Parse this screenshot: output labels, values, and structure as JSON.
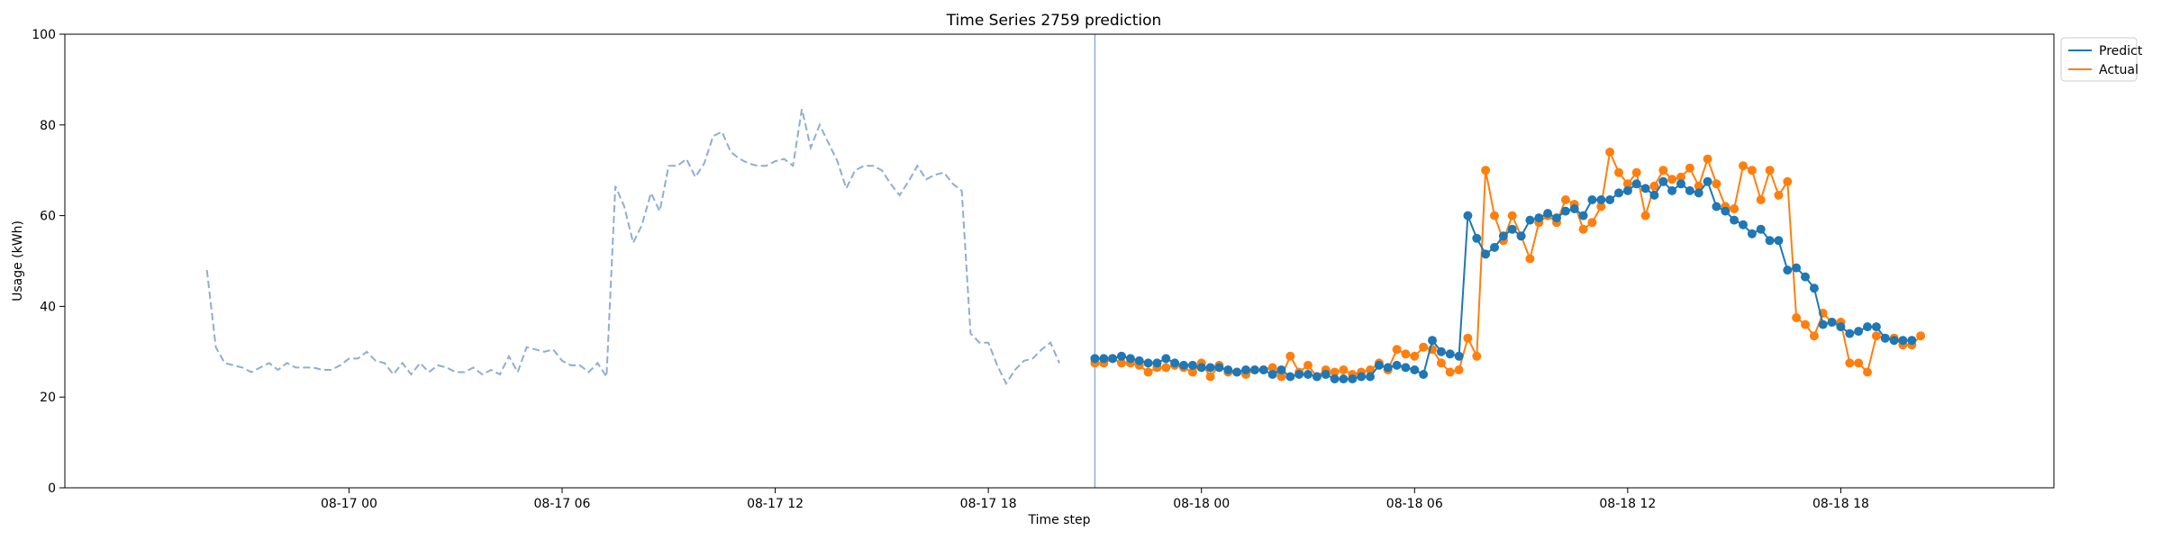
{
  "chart_data": {
    "type": "line",
    "title": "Time Series 2759 prediction",
    "xlabel": "Time step",
    "ylabel": "Usage (kWh)",
    "xlim": [
      "2023-08-16 16:00",
      "2023-08-19 00:00"
    ],
    "ylim": [
      0,
      100
    ],
    "y_ticks": [
      0,
      20,
      40,
      60,
      80,
      100
    ],
    "x_ticks": [
      {
        "value": "2023-08-17 00:00",
        "label": "08-17 00"
      },
      {
        "value": "2023-08-17 06:00",
        "label": "08-17 06"
      },
      {
        "value": "2023-08-17 12:00",
        "label": "08-17 12"
      },
      {
        "value": "2023-08-17 18:00",
        "label": "08-17 18"
      },
      {
        "value": "2023-08-18 00:00",
        "label": "08-18 00"
      },
      {
        "value": "2023-08-18 06:00",
        "label": "08-18 06"
      },
      {
        "value": "2023-08-18 12:00",
        "label": "08-18 12"
      },
      {
        "value": "2023-08-18 18:00",
        "label": "08-18 18"
      }
    ],
    "grid": false,
    "legend_position": "upper-right-outside",
    "vertical_line_at": "2023-08-17 21:00",
    "colors": {
      "history": "#8eaed2",
      "predict": "#1f77b4",
      "actual": "#ff7f0e",
      "vline": "#8eaed2"
    },
    "history": {
      "start": "2023-08-16 20:00",
      "step_minutes": 15,
      "values": [
        48.0,
        31.0,
        27.5,
        27.0,
        26.5,
        25.5,
        26.5,
        27.5,
        26.0,
        27.5,
        26.5,
        26.5,
        26.5,
        26.0,
        26.0,
        27.0,
        28.5,
        28.5,
        30.0,
        28.0,
        27.5,
        25.0,
        27.5,
        25.0,
        27.5,
        25.5,
        27.0,
        26.5,
        25.5,
        25.5,
        26.5,
        25.0,
        26.0,
        25.0,
        29.0,
        25.5,
        31.0,
        30.5,
        30.0,
        30.5,
        28.0,
        27.0,
        27.0,
        25.5,
        27.5,
        24.5,
        66.5,
        62.0,
        54.0,
        58.0,
        65.0,
        61.0,
        71.0,
        71.0,
        72.5,
        68.5,
        71.5,
        77.5,
        78.5,
        74.0,
        72.5,
        71.5,
        71.0,
        71.0,
        72.0,
        72.5,
        71.0,
        83.5,
        75.0,
        80.0,
        76.0,
        72.0,
        66.0,
        70.0,
        71.0,
        71.0,
        70.0,
        67.0,
        64.5,
        67.5,
        71.0,
        68.0,
        69.0,
        69.5,
        67.0,
        65.5,
        34.0,
        32.0,
        32.0,
        27.0,
        23.0,
        26.0,
        28.0,
        28.5,
        30.5,
        32.0,
        27.5
      ]
    },
    "series": [
      {
        "name": "Predict",
        "start": "2023-08-17 21:00",
        "step_minutes": 15,
        "values": [
          28.5,
          28.5,
          28.5,
          29.0,
          28.5,
          28.0,
          27.5,
          27.5,
          28.5,
          27.5,
          27.0,
          27.0,
          26.5,
          26.5,
          26.5,
          26.0,
          25.5,
          26.0,
          26.0,
          26.0,
          25.0,
          26.0,
          24.5,
          25.0,
          25.0,
          24.5,
          25.0,
          24.0,
          24.0,
          24.0,
          24.5,
          24.5,
          27.0,
          26.5,
          27.0,
          26.5,
          26.0,
          25.0,
          32.5,
          30.0,
          29.5,
          29.0,
          60.0,
          55.0,
          51.5,
          53.0,
          55.5,
          57.0,
          55.5,
          59.0,
          59.5,
          60.5,
          59.5,
          61.0,
          61.5,
          60.0,
          63.5,
          63.5,
          63.5,
          65.0,
          65.5,
          67.0,
          66.0,
          64.5,
          67.5,
          65.5,
          67.0,
          65.5,
          65.0,
          67.5,
          62.0,
          61.0,
          59.0,
          58.0,
          56.0,
          57.0,
          54.5,
          54.5,
          48.0,
          48.5,
          46.5,
          44.0,
          36.0,
          36.5,
          35.5,
          34.0,
          34.5,
          35.5,
          35.5,
          33.0,
          32.5,
          32.5,
          32.5
        ]
      },
      {
        "name": "Actual",
        "start": "2023-08-17 21:00",
        "step_minutes": 15,
        "values": [
          27.5,
          27.5,
          28.5,
          27.5,
          27.5,
          27.0,
          25.5,
          26.5,
          26.5,
          27.0,
          26.5,
          25.5,
          27.5,
          24.5,
          27.0,
          25.5,
          25.5,
          25.0,
          26.0,
          26.0,
          26.5,
          24.5,
          29.0,
          25.5,
          27.0,
          24.5,
          26.0,
          25.5,
          26.0,
          25.0,
          25.5,
          26.0,
          27.5,
          26.0,
          30.5,
          29.5,
          29.0,
          31.0,
          30.5,
          27.5,
          25.5,
          26.0,
          33.0,
          29.0,
          70.0,
          60.0,
          54.5,
          60.0,
          55.5,
          50.5,
          58.5,
          60.0,
          58.5,
          63.5,
          62.5,
          57.0,
          58.5,
          62.0,
          74.0,
          69.5,
          67.0,
          69.5,
          60.0,
          66.5,
          70.0,
          68.0,
          68.5,
          70.5,
          66.5,
          72.5,
          67.0,
          62.0,
          61.5,
          71.0,
          70.0,
          63.5,
          70.0,
          64.5,
          67.5,
          37.5,
          36.0,
          33.5,
          38.5,
          36.5,
          36.5,
          27.5,
          27.5,
          25.5,
          33.5,
          33.0,
          33.0,
          31.5,
          31.5,
          33.5
        ]
      }
    ]
  }
}
